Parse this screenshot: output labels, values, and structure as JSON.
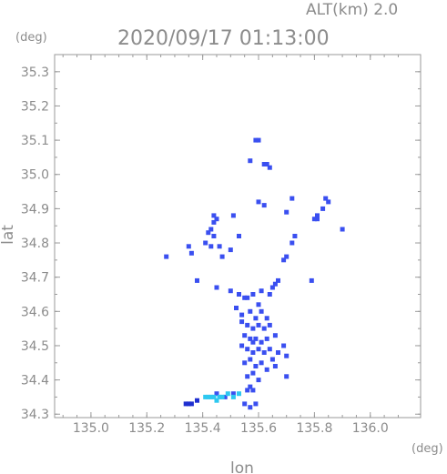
{
  "header": {
    "altitude_label": "ALT(km) 2.0",
    "timestamp": "2020/09/17 01:13:00"
  },
  "chart_data": {
    "type": "scatter",
    "xlabel": "lon",
    "ylabel": "lat",
    "x_unit": "(deg)",
    "y_unit": "(deg)",
    "xlim": [
      134.87,
      136.18
    ],
    "ylim": [
      34.29,
      35.35
    ],
    "x_ticks": [
      "135.0",
      "135.2",
      "135.4",
      "135.6",
      "135.8",
      "136.0"
    ],
    "y_ticks": [
      "34.3",
      "34.4",
      "34.5",
      "34.6",
      "34.7",
      "34.8",
      "34.9",
      "35.0",
      "35.1",
      "35.2",
      "35.3"
    ],
    "grid": false,
    "colors": {
      "axis": "#9a9a9a",
      "echo_blue": "#3a4ff0",
      "echo_light": "#2ec8f0",
      "echo_dark": "#1f2fd0"
    },
    "series": [
      {
        "color": "#3a4ff0",
        "points": [
          [
            135.59,
            35.1
          ],
          [
            135.6,
            35.1
          ],
          [
            135.57,
            35.04
          ],
          [
            135.62,
            35.03
          ],
          [
            135.63,
            35.03
          ],
          [
            135.64,
            35.02
          ],
          [
            135.84,
            34.93
          ],
          [
            135.85,
            34.92
          ],
          [
            135.83,
            34.9
          ],
          [
            135.81,
            34.88
          ],
          [
            135.8,
            34.87
          ],
          [
            135.81,
            34.87
          ],
          [
            135.72,
            34.93
          ],
          [
            135.7,
            34.89
          ],
          [
            135.73,
            34.82
          ],
          [
            135.72,
            34.8
          ],
          [
            135.7,
            34.76
          ],
          [
            135.69,
            34.75
          ],
          [
            135.6,
            34.92
          ],
          [
            135.62,
            34.91
          ],
          [
            135.51,
            34.88
          ],
          [
            135.44,
            34.88
          ],
          [
            135.45,
            34.87
          ],
          [
            135.44,
            34.86
          ],
          [
            135.43,
            34.84
          ],
          [
            135.42,
            34.83
          ],
          [
            135.44,
            34.82
          ],
          [
            135.41,
            34.8
          ],
          [
            135.43,
            34.79
          ],
          [
            135.46,
            34.79
          ],
          [
            135.5,
            34.78
          ],
          [
            135.53,
            34.82
          ],
          [
            135.47,
            34.76
          ],
          [
            135.35,
            34.79
          ],
          [
            135.36,
            34.77
          ],
          [
            135.27,
            34.76
          ],
          [
            135.38,
            34.69
          ],
          [
            135.45,
            34.67
          ],
          [
            135.5,
            34.66
          ],
          [
            135.53,
            34.65
          ],
          [
            135.55,
            34.64
          ],
          [
            135.56,
            34.64
          ],
          [
            135.58,
            34.65
          ],
          [
            135.61,
            34.66
          ],
          [
            135.65,
            34.67
          ],
          [
            135.66,
            34.68
          ],
          [
            135.67,
            34.69
          ],
          [
            135.64,
            34.65
          ],
          [
            135.6,
            34.62
          ],
          [
            135.52,
            34.61
          ],
          [
            135.54,
            34.59
          ],
          [
            135.57,
            34.6
          ],
          [
            135.59,
            34.58
          ],
          [
            135.61,
            34.6
          ],
          [
            135.63,
            34.58
          ],
          [
            135.54,
            34.57
          ],
          [
            135.56,
            34.56
          ],
          [
            135.58,
            34.55
          ],
          [
            135.6,
            34.56
          ],
          [
            135.62,
            34.55
          ],
          [
            135.64,
            34.56
          ],
          [
            135.55,
            34.53
          ],
          [
            135.57,
            34.52
          ],
          [
            135.58,
            34.51
          ],
          [
            135.59,
            34.52
          ],
          [
            135.61,
            34.51
          ],
          [
            135.63,
            34.52
          ],
          [
            135.66,
            34.53
          ],
          [
            135.54,
            34.5
          ],
          [
            135.56,
            34.49
          ],
          [
            135.58,
            34.48
          ],
          [
            135.6,
            34.49
          ],
          [
            135.62,
            34.48
          ],
          [
            135.64,
            34.49
          ],
          [
            135.67,
            34.48
          ],
          [
            135.69,
            34.5
          ],
          [
            135.7,
            34.47
          ],
          [
            135.65,
            34.46
          ],
          [
            135.57,
            34.46
          ],
          [
            135.55,
            34.45
          ],
          [
            135.59,
            34.44
          ],
          [
            135.61,
            34.45
          ],
          [
            135.63,
            34.43
          ],
          [
            135.66,
            34.44
          ],
          [
            135.58,
            34.42
          ],
          [
            135.56,
            34.41
          ],
          [
            135.6,
            34.4
          ],
          [
            135.7,
            34.41
          ],
          [
            135.57,
            34.38
          ],
          [
            135.56,
            34.37
          ],
          [
            135.58,
            34.37
          ],
          [
            135.55,
            34.33
          ],
          [
            135.57,
            34.32
          ],
          [
            135.59,
            34.33
          ],
          [
            135.45,
            34.36
          ],
          [
            135.48,
            34.35
          ],
          [
            135.51,
            34.36
          ],
          [
            135.79,
            34.69
          ],
          [
            135.9,
            34.84
          ]
        ]
      },
      {
        "color": "#2ec8f0",
        "points": [
          [
            135.41,
            34.35
          ],
          [
            135.42,
            34.35
          ],
          [
            135.43,
            34.35
          ],
          [
            135.44,
            34.35
          ],
          [
            135.45,
            34.34
          ],
          [
            135.46,
            34.35
          ],
          [
            135.47,
            34.35
          ],
          [
            135.49,
            34.36
          ],
          [
            135.51,
            34.35
          ],
          [
            135.53,
            34.36
          ]
        ]
      },
      {
        "color": "#1f2fd0",
        "points": [
          [
            135.34,
            34.33
          ],
          [
            135.35,
            34.33
          ],
          [
            135.36,
            34.33
          ],
          [
            135.38,
            34.34
          ]
        ]
      }
    ]
  }
}
